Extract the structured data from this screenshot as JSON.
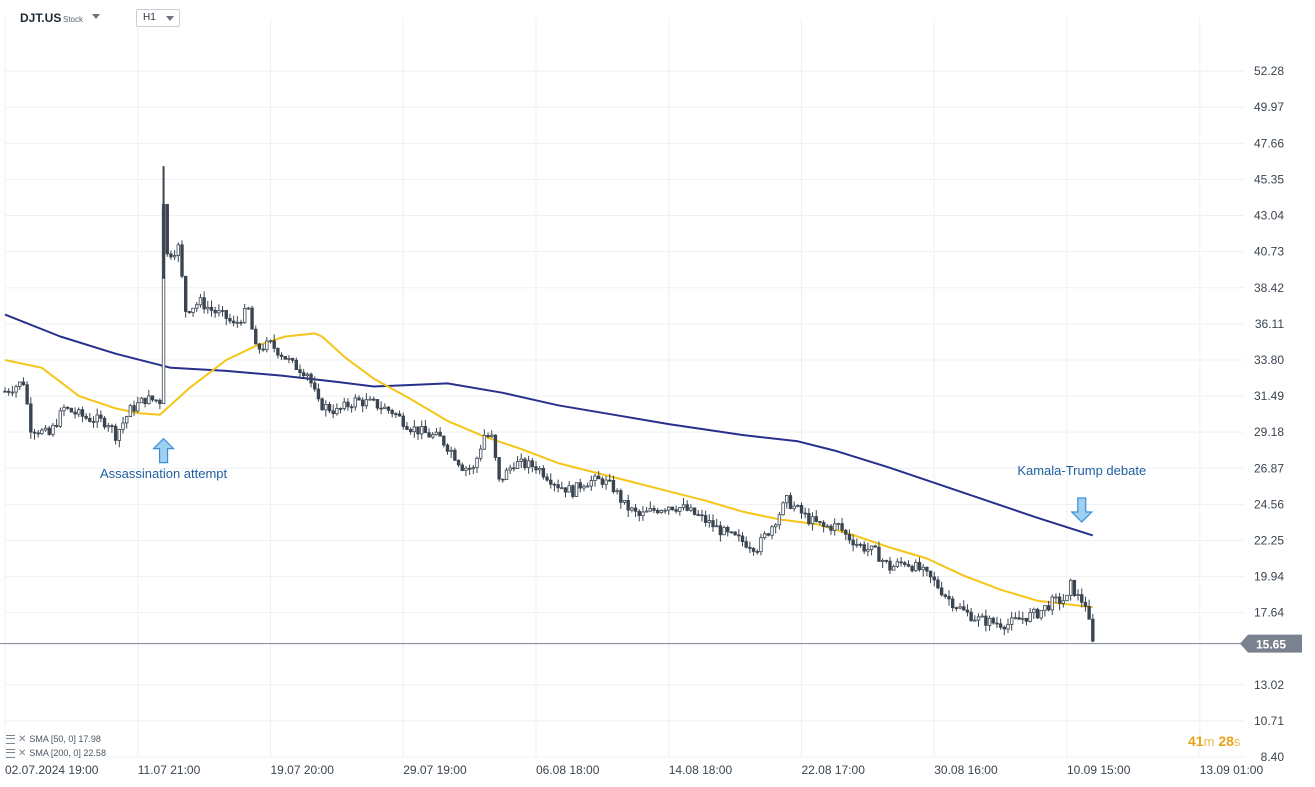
{
  "header": {
    "symbol": "DJT.US",
    "symbol_type": "Stock",
    "timeframe": "H1"
  },
  "legend": {
    "items": [
      {
        "label": "SMA [50, 0] 17.98",
        "color": "#f5c518"
      },
      {
        "label": "SMA [200, 0] 22.58",
        "color": "#27308c"
      }
    ]
  },
  "timer": {
    "minutes": "41",
    "m_unit": "m",
    "seconds": "28",
    "s_unit": "s"
  },
  "colors": {
    "background": "#ffffff",
    "grid": "#eef0f3",
    "candle": "#3a4550",
    "sma50": "#f5c518",
    "sma200": "#27308c",
    "annotation_text": "#1f5fa0",
    "arrow_fill": "#9fd0f2",
    "arrow_stroke": "#3a8fd8",
    "price_line": "#7a8290",
    "price_badge": "#7a8290"
  },
  "chart_data": {
    "type": "candlestick",
    "title": "",
    "xlabel": "",
    "ylabel": "",
    "ylim": [
      8.4,
      54.59
    ],
    "y_ticks": [
      "52.28",
      "49.97",
      "47.66",
      "45.35",
      "43.04",
      "40.73",
      "38.42",
      "36.11",
      "33.80",
      "31.49",
      "29.18",
      "26.87",
      "24.56",
      "22.25",
      "19.94",
      "17.64",
      "13.02",
      "10.71",
      "8.40"
    ],
    "x_ticks": [
      "02.07.2024 19:00",
      "11.07 21:00",
      "19.07 20:00",
      "29.07 19:00",
      "06.08 18:00",
      "14.08 18:00",
      "22.08 17:00",
      "30.08 16:00",
      "10.09 15:00",
      "13.09 01:00"
    ],
    "x_tick_index": [
      0,
      36,
      72,
      108,
      144,
      180,
      216,
      252,
      288,
      324
    ],
    "current_price": "15.65",
    "grid": true,
    "price_path": [
      [
        0,
        31.8
      ],
      [
        5,
        32.4
      ],
      [
        7,
        29.5
      ],
      [
        12,
        29.0
      ],
      [
        16,
        30.7
      ],
      [
        22,
        30.1
      ],
      [
        28,
        29.8
      ],
      [
        30,
        29.0
      ],
      [
        34,
        30.6
      ],
      [
        38,
        31.3
      ],
      [
        42,
        31.2
      ],
      [
        43,
        44.0
      ],
      [
        44,
        40.5
      ],
      [
        47,
        41.0
      ],
      [
        49,
        37.0
      ],
      [
        53,
        37.5
      ],
      [
        56,
        37.0
      ],
      [
        60,
        36.5
      ],
      [
        62,
        36.0
      ],
      [
        66,
        37.0
      ],
      [
        68,
        34.5
      ],
      [
        72,
        34.8
      ],
      [
        75,
        34.2
      ],
      [
        78,
        33.5
      ],
      [
        82,
        33.0
      ],
      [
        85,
        31.0
      ],
      [
        90,
        30.5
      ],
      [
        95,
        31.2
      ],
      [
        100,
        31.0
      ],
      [
        105,
        30.5
      ],
      [
        110,
        29.5
      ],
      [
        115,
        29.0
      ],
      [
        118,
        28.8
      ],
      [
        121,
        28.0
      ],
      [
        124,
        27.0
      ],
      [
        127,
        26.8
      ],
      [
        130,
        29.0
      ],
      [
        132,
        28.8
      ],
      [
        134,
        26.0
      ],
      [
        138,
        27.2
      ],
      [
        144,
        27.0
      ],
      [
        147,
        26.4
      ],
      [
        150,
        25.8
      ],
      [
        154,
        25.4
      ],
      [
        157,
        26.0
      ],
      [
        162,
        26.1
      ],
      [
        165,
        25.6
      ],
      [
        168,
        24.5
      ],
      [
        172,
        23.8
      ],
      [
        176,
        24.2
      ],
      [
        180,
        24.5
      ],
      [
        184,
        24.3
      ],
      [
        188,
        23.8
      ],
      [
        192,
        23.2
      ],
      [
        196,
        22.6
      ],
      [
        200,
        22.2
      ],
      [
        204,
        21.8
      ],
      [
        208,
        23.2
      ],
      [
        212,
        24.8
      ],
      [
        215,
        24.2
      ],
      [
        218,
        23.6
      ],
      [
        222,
        23.1
      ],
      [
        226,
        23.2
      ],
      [
        228,
        22.6
      ],
      [
        232,
        21.9
      ],
      [
        236,
        21.5
      ],
      [
        240,
        20.5
      ],
      [
        244,
        20.9
      ],
      [
        248,
        20.4
      ],
      [
        252,
        19.6
      ],
      [
        256,
        18.5
      ],
      [
        260,
        17.7
      ],
      [
        264,
        17.2
      ],
      [
        268,
        17.0
      ],
      [
        272,
        16.9
      ],
      [
        276,
        17.3
      ],
      [
        280,
        17.6
      ],
      [
        284,
        18.3
      ],
      [
        288,
        18.5
      ],
      [
        289,
        19.4
      ],
      [
        291,
        18.6
      ],
      [
        293,
        18.2
      ],
      [
        295,
        15.65
      ]
    ],
    "series": [
      {
        "name": "SMA [50, 0]",
        "x": [
          0,
          10,
          20,
          30,
          36,
          42,
          50,
          60,
          68,
          76,
          84,
          86,
          92,
          100,
          110,
          120,
          130,
          140,
          150,
          160,
          170,
          180,
          190,
          200,
          210,
          220,
          230,
          240,
          250,
          260,
          270,
          280,
          295
        ],
        "values": [
          33.8,
          33.3,
          31.5,
          30.7,
          30.4,
          30.3,
          32.0,
          33.8,
          34.7,
          35.3,
          35.5,
          35.3,
          34.0,
          32.6,
          31.3,
          29.9,
          28.9,
          28.1,
          27.2,
          26.6,
          26.0,
          25.4,
          24.8,
          24.1,
          23.6,
          23.3,
          22.6,
          21.8,
          21.1,
          20.0,
          19.1,
          18.4,
          17.98
        ]
      },
      {
        "name": "SMA [200, 0]",
        "x": [
          0,
          15,
          30,
          45,
          60,
          75,
          90,
          100,
          110,
          120,
          135,
          150,
          165,
          180,
          200,
          215,
          225,
          240,
          260,
          280,
          295
        ],
        "values": [
          36.7,
          35.3,
          34.2,
          33.3,
          33.1,
          32.8,
          32.4,
          32.1,
          32.2,
          32.3,
          31.7,
          30.9,
          30.3,
          29.7,
          29.0,
          28.6,
          28.0,
          26.9,
          25.3,
          23.7,
          22.58
        ]
      }
    ],
    "annotations": [
      {
        "text": "Assassination attempt",
        "x": 43,
        "price": 26.5,
        "arrow": "up",
        "arrow_price": 28.0
      },
      {
        "text": "Kamala-Trump debate",
        "x": 292,
        "price": 26.7,
        "arrow": "down",
        "arrow_price": 24.2
      }
    ]
  }
}
